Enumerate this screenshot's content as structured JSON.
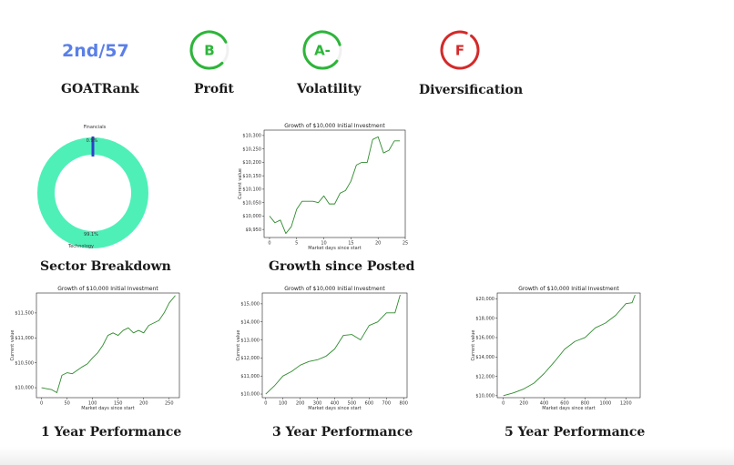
{
  "metrics": {
    "goat_rank": {
      "value": "2nd/57",
      "label": "GOATRank"
    },
    "profit": {
      "grade": "B",
      "label": "Profit",
      "color": "#2db53a",
      "arc_fraction": 0.8
    },
    "volatility": {
      "grade": "A-",
      "label": "Volatility",
      "color": "#2db53a",
      "arc_fraction": 0.85
    },
    "diversification": {
      "grade": "F",
      "label": "Diversification",
      "color": "#d42a2a",
      "arc_fraction": 0.95
    }
  },
  "sections": {
    "sector": "Sector Breakdown",
    "growth_posted": "Growth since Posted",
    "one_year": "1 Year Performance",
    "three_year": "3 Year Performance",
    "five_year": "5 Year Performance"
  },
  "colors": {
    "line": "#2e8b2e",
    "donut_main": "#4ef0b8",
    "donut_fin": "#2f3fc8",
    "rank": "#5a7fe8"
  },
  "chart_data": [
    {
      "type": "pie",
      "subtype": "donut",
      "categories": [
        "Technology",
        "Financials"
      ],
      "values": [
        99.1,
        0.9
      ],
      "labels": [
        "99.1%",
        "0.9%"
      ],
      "legend": {
        "technology": "Technology",
        "financials": "Financials"
      }
    },
    {
      "type": "line",
      "title": "Growth of $10,000 Initial Investment",
      "xlabel": "Market days since start",
      "ylabel": "Current value",
      "xlim": [
        -1,
        25
      ],
      "ylim": [
        9920,
        10320
      ],
      "xticks": [
        0,
        5,
        10,
        15,
        20,
        25
      ],
      "yticks": [
        9950,
        10000,
        10050,
        10100,
        10150,
        10200,
        10250,
        10300
      ],
      "ytick_labels": [
        "$9,950",
        "$10,000",
        "$10,050",
        "$10,100",
        "$10,150",
        "$10,200",
        "$10,250",
        "$10,300"
      ],
      "x": [
        0,
        1,
        2,
        3,
        4,
        5,
        6,
        7,
        8,
        9,
        10,
        11,
        12,
        13,
        14,
        15,
        16,
        17,
        18,
        19,
        20,
        21,
        22,
        23,
        24
      ],
      "y": [
        10000,
        9975,
        9985,
        9935,
        9960,
        10025,
        10055,
        10055,
        10055,
        10050,
        10075,
        10045,
        10045,
        10085,
        10095,
        10130,
        10190,
        10200,
        10200,
        10285,
        10295,
        10235,
        10245,
        10280,
        10280
      ]
    },
    {
      "type": "line",
      "title": "Growth of $10,000 Initial Investment",
      "xlabel": "Market days since start",
      "ylabel": "Current value",
      "xlim": [
        -10,
        270
      ],
      "ylim": [
        9800,
        11900
      ],
      "xticks": [
        0,
        50,
        100,
        150,
        200,
        250
      ],
      "yticks": [
        10000,
        10500,
        11000,
        11500
      ],
      "ytick_labels": [
        "$10,000",
        "$10,500",
        "$11,000",
        "$11,500"
      ],
      "x": [
        0,
        10,
        20,
        30,
        40,
        50,
        60,
        70,
        80,
        90,
        100,
        110,
        120,
        130,
        140,
        150,
        160,
        170,
        180,
        190,
        200,
        210,
        220,
        230,
        240,
        250,
        262
      ],
      "y": [
        10000,
        9980,
        9960,
        9900,
        10250,
        10300,
        10280,
        10350,
        10420,
        10480,
        10600,
        10700,
        10850,
        11050,
        11100,
        11050,
        11150,
        11200,
        11100,
        11150,
        11100,
        11250,
        11300,
        11350,
        11500,
        11700,
        11850
      ]
    },
    {
      "type": "line",
      "title": "Growth of $10,000 Initial Investment",
      "xlabel": "Market days since start",
      "ylabel": "Current value",
      "xlim": [
        -20,
        820
      ],
      "ylim": [
        9800,
        15600
      ],
      "xticks": [
        0,
        100,
        200,
        300,
        400,
        500,
        600,
        700,
        800
      ],
      "yticks": [
        10000,
        11000,
        12000,
        13000,
        14000,
        15000
      ],
      "ytick_labels": [
        "$10,000",
        "$11,000",
        "$12,000",
        "$13,000",
        "$14,000",
        "$15,000"
      ],
      "x": [
        0,
        50,
        100,
        150,
        200,
        250,
        300,
        350,
        400,
        450,
        500,
        550,
        600,
        650,
        700,
        750,
        780
      ],
      "y": [
        10000,
        10450,
        11000,
        11250,
        11600,
        11800,
        11900,
        12100,
        12500,
        13250,
        13300,
        13000,
        13800,
        14000,
        14500,
        14500,
        15500
      ]
    },
    {
      "type": "line",
      "title": "Growth of $10,000 Initial Investment",
      "xlabel": "Market days since start",
      "ylabel": "Current value",
      "xlim": [
        -60,
        1340
      ],
      "ylim": [
        9800,
        20600
      ],
      "xticks": [
        0,
        200,
        400,
        600,
        800,
        1000,
        1200
      ],
      "yticks": [
        10000,
        12000,
        14000,
        16000,
        18000,
        20000
      ],
      "ytick_labels": [
        "$10,000",
        "$12,000",
        "$14,000",
        "$16,000",
        "$18,000",
        "$20,000"
      ],
      "x": [
        0,
        100,
        200,
        300,
        400,
        500,
        600,
        700,
        800,
        900,
        1000,
        1100,
        1200,
        1260,
        1290
      ],
      "y": [
        10000,
        10300,
        10700,
        11300,
        12300,
        13500,
        14800,
        15600,
        16000,
        17000,
        17500,
        18300,
        19500,
        19600,
        20400
      ]
    }
  ]
}
